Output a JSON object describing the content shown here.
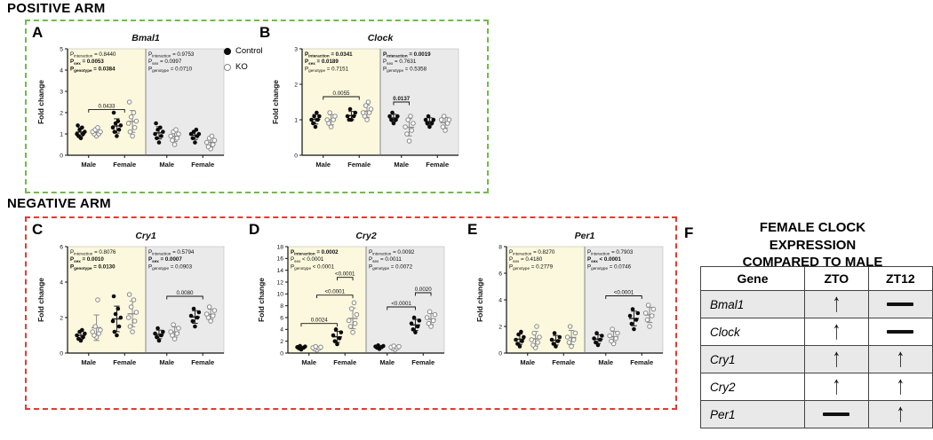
{
  "sections": {
    "positive": {
      "label": "POSITIVE ARM",
      "border_color": "#6dbe45"
    },
    "negative": {
      "label": "NEGATIVE ARM",
      "border_color": "#e8392e"
    }
  },
  "legend": {
    "control": "Control",
    "ko": "KO"
  },
  "table": {
    "panel_letter": "F",
    "title": "FEMALE CLOCK EXPRESSION COMPARED TO MALE",
    "headers": [
      "Gene",
      "ZTO",
      "ZT12"
    ],
    "rows": [
      {
        "gene": "Bmal1",
        "zt0": "up",
        "zt12": "dash"
      },
      {
        "gene": "Clock",
        "zt0": "up",
        "zt12": "dash"
      },
      {
        "gene": "Cry1",
        "zt0": "up",
        "zt12": "up"
      },
      {
        "gene": "Cry2",
        "zt0": "up",
        "zt12": "up"
      },
      {
        "gene": "Per1",
        "zt0": "dash",
        "zt12": "up"
      }
    ]
  },
  "chart_data": [
    {
      "type": "scatter",
      "panel_letter": "A",
      "title": "Bmal1",
      "ylabel": "Fold change",
      "ylim": [
        0,
        5
      ],
      "ytick_step": 1,
      "series_legend": [
        "Control",
        "KO"
      ],
      "halves": [
        {
          "name": "ZT0",
          "bg": "#fcf8dd",
          "stats": [
            {
              "sub": "interaction",
              "value": "= 0.8440",
              "bold": false
            },
            {
              "sub": "sex",
              "value": "= 0.0053",
              "bold": true
            },
            {
              "sub": "genotype",
              "value": "= 0.0384",
              "bold": true
            }
          ],
          "groups": [
            {
              "label": "Male",
              "control": [
                0.8,
                0.9,
                1.0,
                1.0,
                1.1,
                1.2,
                1.3,
                1.4
              ],
              "ko": [
                0.9,
                1.0,
                1.0,
                1.1,
                1.1,
                1.2,
                1.3
              ]
            },
            {
              "label": "Female",
              "control": [
                0.9,
                1.1,
                1.2,
                1.3,
                1.4,
                1.5,
                1.6,
                2.0
              ],
              "ko": [
                0.9,
                1.1,
                1.3,
                1.5,
                1.6,
                1.8,
                2.0,
                2.5
              ]
            }
          ],
          "brackets": [
            {
              "x1": 0.5,
              "x2": 2.5,
              "y": 2.15,
              "label": "0.0433",
              "bold": false
            }
          ]
        },
        {
          "name": "ZT12",
          "bg": "#eaeaea",
          "stats": [
            {
              "sub": "interaction",
              "value": "= 0.9753",
              "bold": false
            },
            {
              "sub": "sex",
              "value": "= 0.0997",
              "bold": false
            },
            {
              "sub": "genotype",
              "value": "= 0.0710",
              "bold": false
            }
          ],
          "groups": [
            {
              "label": "Male",
              "control": [
                0.6,
                0.8,
                0.9,
                1.0,
                1.1,
                1.2,
                1.3,
                1.5
              ],
              "ko": [
                0.5,
                0.7,
                0.8,
                0.9,
                1.0,
                1.1,
                1.2
              ]
            },
            {
              "label": "Female",
              "control": [
                0.6,
                0.8,
                0.9,
                1.0,
                1.0,
                1.1,
                1.2
              ],
              "ko": [
                0.3,
                0.4,
                0.5,
                0.6,
                0.7,
                0.8,
                0.9
              ]
            }
          ],
          "brackets": []
        }
      ]
    },
    {
      "type": "scatter",
      "panel_letter": "B",
      "title": "Clock",
      "ylabel": "Fold change",
      "ylim": [
        0,
        3
      ],
      "ytick_step": 1,
      "series_legend": [
        "Control",
        "KO"
      ],
      "halves": [
        {
          "name": "ZT0",
          "bg": "#fcf8dd",
          "stats": [
            {
              "sub": "interaction",
              "value": "= 0.0341",
              "bold": true
            },
            {
              "sub": "sex",
              "value": "= 0.0189",
              "bold": true
            },
            {
              "sub": "genotype",
              "value": "= 0.7151",
              "bold": false
            }
          ],
          "groups": [
            {
              "label": "Male",
              "control": [
                0.8,
                0.9,
                1.0,
                1.0,
                1.1,
                1.1,
                1.2
              ],
              "ko": [
                0.8,
                0.9,
                1.0,
                1.0,
                1.1,
                1.2
              ]
            },
            {
              "label": "Female",
              "control": [
                1.0,
                1.0,
                1.1,
                1.1,
                1.2,
                1.3
              ],
              "ko": [
                1.0,
                1.1,
                1.2,
                1.2,
                1.3,
                1.4,
                1.5
              ]
            }
          ],
          "brackets": [
            {
              "x1": 0.5,
              "x2": 2.5,
              "y": 1.65,
              "label": "0.0055",
              "bold": false
            }
          ]
        },
        {
          "name": "ZT12",
          "bg": "#eaeaea",
          "stats": [
            {
              "sub": "interaction",
              "value": "= 0.0019",
              "bold": true
            },
            {
              "sub": "sex",
              "value": "= 0.7631",
              "bold": false
            },
            {
              "sub": "genotype",
              "value": "= 0.5358",
              "bold": false
            }
          ],
          "groups": [
            {
              "label": "Male",
              "control": [
                0.9,
                1.0,
                1.0,
                1.1,
                1.1,
                1.2
              ],
              "ko": [
                0.4,
                0.6,
                0.7,
                0.8,
                0.9,
                1.0,
                1.1
              ]
            },
            {
              "label": "Female",
              "control": [
                0.8,
                0.9,
                0.9,
                1.0,
                1.0,
                1.1
              ],
              "ko": [
                0.7,
                0.8,
                0.9,
                1.0,
                1.0,
                1.1
              ]
            }
          ],
          "brackets": [
            {
              "x1": 0,
              "x2": 1,
              "y": 1.5,
              "label": "0.0137",
              "bold": true
            }
          ]
        }
      ]
    },
    {
      "type": "scatter",
      "panel_letter": "C",
      "title": "Cry1",
      "ylabel": "Fold change",
      "ylim": [
        0,
        6
      ],
      "ytick_step": 2,
      "series_legend": [
        "Control",
        "KO"
      ],
      "halves": [
        {
          "name": "ZT0",
          "bg": "#fcf8dd",
          "stats": [
            {
              "sub": "interaction",
              "value": "= 0.8076",
              "bold": false
            },
            {
              "sub": "sex",
              "value": "= 0.0010",
              "bold": true
            },
            {
              "sub": "genotype",
              "value": "= 0.0130",
              "bold": true
            }
          ],
          "groups": [
            {
              "label": "Male",
              "control": [
                0.7,
                0.8,
                0.9,
                1.0,
                1.1,
                1.2,
                1.3
              ],
              "ko": [
                0.9,
                1.0,
                1.1,
                1.2,
                1.3,
                1.5,
                3.0
              ]
            },
            {
              "label": "Female",
              "control": [
                1.0,
                1.2,
                1.5,
                1.8,
                2.0,
                2.2,
                2.5,
                3.2
              ],
              "ko": [
                1.2,
                1.5,
                1.8,
                2.0,
                2.3,
                2.6,
                3.0,
                3.3
              ]
            }
          ],
          "brackets": []
        },
        {
          "name": "ZT12",
          "bg": "#eaeaea",
          "stats": [
            {
              "sub": "interaction",
              "value": "= 0.5794",
              "bold": false
            },
            {
              "sub": "sex",
              "value": "= 0.0007",
              "bold": true
            },
            {
              "sub": "genotype",
              "value": "= 0.0903",
              "bold": false
            }
          ],
          "groups": [
            {
              "label": "Male",
              "control": [
                0.7,
                0.9,
                1.0,
                1.1,
                1.2,
                1.4
              ],
              "ko": [
                0.8,
                1.0,
                1.1,
                1.2,
                1.4,
                1.6
              ]
            },
            {
              "label": "Female",
              "control": [
                1.5,
                1.8,
                2.0,
                2.1,
                2.3,
                2.5
              ],
              "ko": [
                1.8,
                2.0,
                2.1,
                2.2,
                2.4,
                2.6
              ]
            }
          ],
          "brackets": [
            {
              "x1": 0.5,
              "x2": 2.5,
              "y": 3.2,
              "label": "0.0080",
              "bold": false
            }
          ]
        }
      ]
    },
    {
      "type": "scatter",
      "panel_letter": "D",
      "title": "Cry2",
      "ylabel": "Fold change",
      "ylim": [
        0,
        18
      ],
      "ytick_step": 2,
      "series_legend": [
        "Control",
        "KO"
      ],
      "halves": [
        {
          "name": "ZT0",
          "bg": "#fcf8dd",
          "stats": [
            {
              "sub": "interaction",
              "value": "= 0.0002",
              "bold": true
            },
            {
              "sub": "sex",
              "value": "< 0.0001",
              "bold": false
            },
            {
              "sub": "genotype",
              "value": "< 0.0001",
              "bold": false
            }
          ],
          "groups": [
            {
              "label": "Male",
              "control": [
                0.6,
                0.8,
                0.9,
                1.0,
                1.1,
                1.2
              ],
              "ko": [
                0.5,
                0.7,
                0.8,
                0.9,
                1.0,
                1.1
              ]
            },
            {
              "label": "Female",
              "control": [
                1.5,
                2.0,
                2.5,
                3.0,
                3.5,
                4.0
              ],
              "ko": [
                3.5,
                4.5,
                5.0,
                5.5,
                6.5,
                7.5,
                8.5
              ]
            }
          ],
          "brackets": [
            {
              "x1": 0,
              "x2": 2,
              "y": 5.0,
              "label": "0.0024",
              "bold": false
            },
            {
              "x1": 1,
              "x2": 3,
              "y": 9.8,
              "label": "<0.0001",
              "bold": false
            },
            {
              "x1": 2,
              "x2": 3,
              "y": 12.8,
              "label": "<0.0001",
              "bold": false
            }
          ]
        },
        {
          "name": "ZT12",
          "bg": "#eaeaea",
          "stats": [
            {
              "sub": "interaction",
              "value": "= 0.0092",
              "bold": false
            },
            {
              "sub": "sex",
              "value": "= 0.0011",
              "bold": false
            },
            {
              "sub": "genotype",
              "value": "= 0.0072",
              "bold": false
            }
          ],
          "groups": [
            {
              "label": "Male",
              "control": [
                0.7,
                0.9,
                1.0,
                1.1,
                1.2,
                1.3
              ],
              "ko": [
                0.6,
                0.8,
                0.9,
                1.0,
                1.1,
                1.2
              ]
            },
            {
              "label": "Female",
              "control": [
                3.5,
                4.0,
                4.5,
                5.0,
                5.5,
                6.0
              ],
              "ko": [
                4.5,
                5.0,
                5.5,
                6.0,
                6.5,
                7.0
              ]
            }
          ],
          "brackets": [
            {
              "x1": 0.5,
              "x2": 2,
              "y": 7.8,
              "label": "<0.0001",
              "bold": false
            },
            {
              "x1": 2,
              "x2": 3,
              "y": 10.2,
              "label": "0.0020",
              "bold": false
            }
          ]
        }
      ]
    },
    {
      "type": "scatter",
      "panel_letter": "E",
      "title": "Per1",
      "ylabel": "Fold change",
      "ylim": [
        0,
        8
      ],
      "ytick_step": 2,
      "series_legend": [
        "Control",
        "KO"
      ],
      "halves": [
        {
          "name": "ZT0",
          "bg": "#fcf8dd",
          "stats": [
            {
              "sub": "interaction",
              "value": "= 0.8270",
              "bold": false
            },
            {
              "sub": "sex",
              "value": "= 0.4180",
              "bold": false
            },
            {
              "sub": "genotype",
              "value": "= 0.2779",
              "bold": false
            }
          ],
          "groups": [
            {
              "label": "Male",
              "control": [
                0.5,
                0.7,
                0.9,
                1.0,
                1.2,
                1.4,
                1.6
              ],
              "ko": [
                0.4,
                0.6,
                0.8,
                1.0,
                1.2,
                1.5,
                2.0
              ]
            },
            {
              "label": "Female",
              "control": [
                0.5,
                0.7,
                0.9,
                1.0,
                1.2,
                1.5
              ],
              "ko": [
                0.5,
                0.8,
                1.0,
                1.2,
                1.5,
                2.0
              ]
            }
          ],
          "brackets": []
        },
        {
          "name": "ZT12",
          "bg": "#eaeaea",
          "stats": [
            {
              "sub": "interaction",
              "value": "= 0.7903",
              "bold": false
            },
            {
              "sub": "sex",
              "value": "< 0.0001",
              "bold": true
            },
            {
              "sub": "genotype",
              "value": "= 0.0746",
              "bold": false
            }
          ],
          "groups": [
            {
              "label": "Male",
              "control": [
                0.6,
                0.8,
                1.0,
                1.1,
                1.3,
                1.5
              ],
              "ko": [
                0.7,
                0.9,
                1.1,
                1.3,
                1.5,
                1.8
              ]
            },
            {
              "label": "Female",
              "control": [
                1.8,
                2.2,
                2.5,
                2.8,
                3.0,
                3.3
              ],
              "ko": [
                2.0,
                2.5,
                2.8,
                3.0,
                3.3,
                3.6
              ]
            }
          ],
          "brackets": [
            {
              "x1": 0.5,
              "x2": 2.5,
              "y": 4.3,
              "label": "<0.0001",
              "bold": false
            }
          ]
        }
      ]
    }
  ]
}
